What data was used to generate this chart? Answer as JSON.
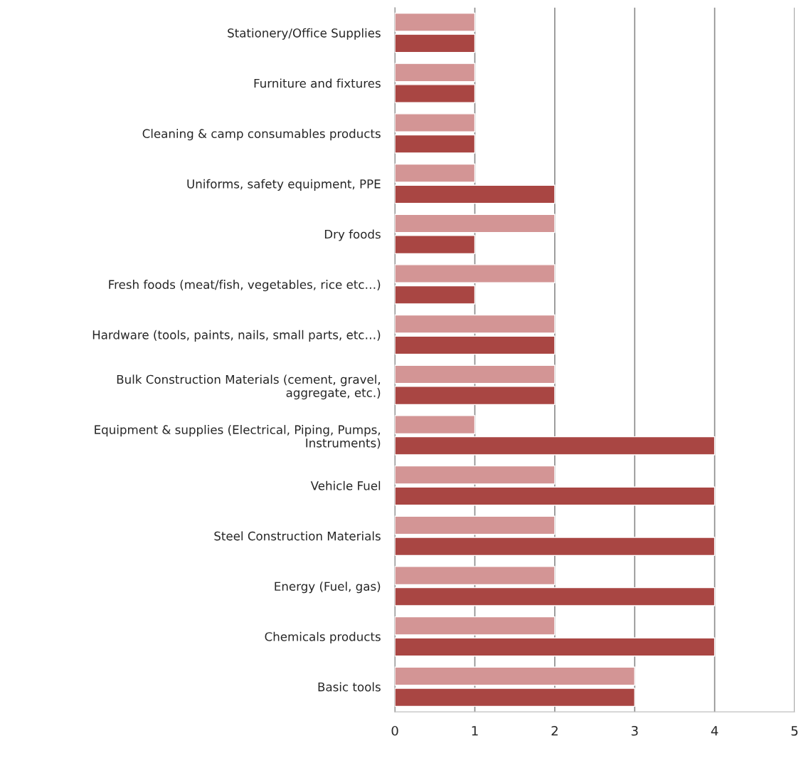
{
  "chart_data": {
    "type": "bar",
    "orientation": "horizontal",
    "categories": [
      "Stationery/Office Supplies",
      "Furniture and fixtures",
      "Cleaning & camp consumables products",
      "Uniforms, safety equipment, PPE",
      "Dry foods",
      "Fresh foods (meat/fish, vegetables, rice etc…)",
      "Hardware (tools, paints, nails, small parts, etc…)",
      "Bulk Construction Materials (cement, gravel,\naggregate, etc.)",
      "Equipment & supplies (Electrical, Piping, Pumps,\nInstruments)",
      "Vehicle Fuel",
      "Steel Construction Materials",
      "Energy (Fuel, gas)",
      "Chemicals products",
      "Basic tools"
    ],
    "series": [
      {
        "color": "#d39595",
        "values": [
          1,
          1,
          1,
          1,
          2,
          2,
          2,
          2,
          1,
          2,
          2,
          2,
          2,
          3
        ]
      },
      {
        "color": "#a94643",
        "values": [
          1,
          1,
          1,
          2,
          1,
          1,
          2,
          2,
          4,
          4,
          4,
          4,
          4,
          3
        ]
      }
    ],
    "xlim": [
      0,
      5
    ],
    "xticks": [
      0,
      1,
      2,
      3,
      4,
      5
    ],
    "grid": "x"
  }
}
